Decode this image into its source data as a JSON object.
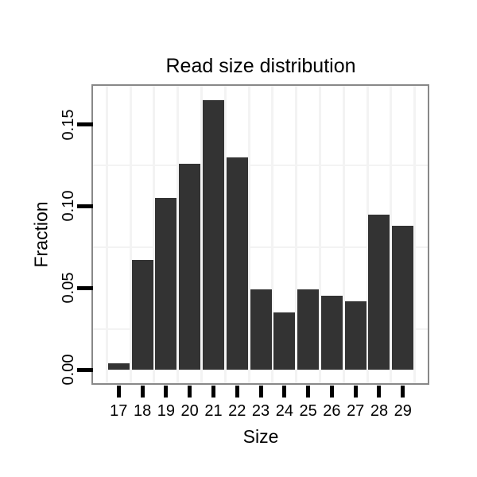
{
  "chart_data": {
    "type": "bar",
    "title": "Read size distribution",
    "xlabel": "Size",
    "ylabel": "Fraction",
    "categories": [
      "17",
      "18",
      "19",
      "20",
      "21",
      "22",
      "23",
      "24",
      "25",
      "26",
      "27",
      "28",
      "29"
    ],
    "values": [
      0.004,
      0.067,
      0.105,
      0.126,
      0.165,
      0.13,
      0.049,
      0.035,
      0.049,
      0.045,
      0.042,
      0.095,
      0.088
    ],
    "ylim": [
      0,
      0.173
    ],
    "y_ticks": {
      "values": [
        0.0,
        0.05,
        0.1,
        0.15
      ],
      "labels": [
        "0.00",
        "0.05",
        "0.10",
        "0.15"
      ]
    },
    "grid": {
      "style": "minor-only",
      "horizontal_minor_values": [
        0.025,
        0.075,
        0.125
      ],
      "vertical_minor_at_category_boundaries": true
    },
    "legend": "none",
    "colors": {
      "bar_fill": "#333333",
      "panel_border": "#888888",
      "grid_minor": "#f3f3f3",
      "tick": "#000000",
      "text": "#000000",
      "background": "#ffffff"
    }
  }
}
